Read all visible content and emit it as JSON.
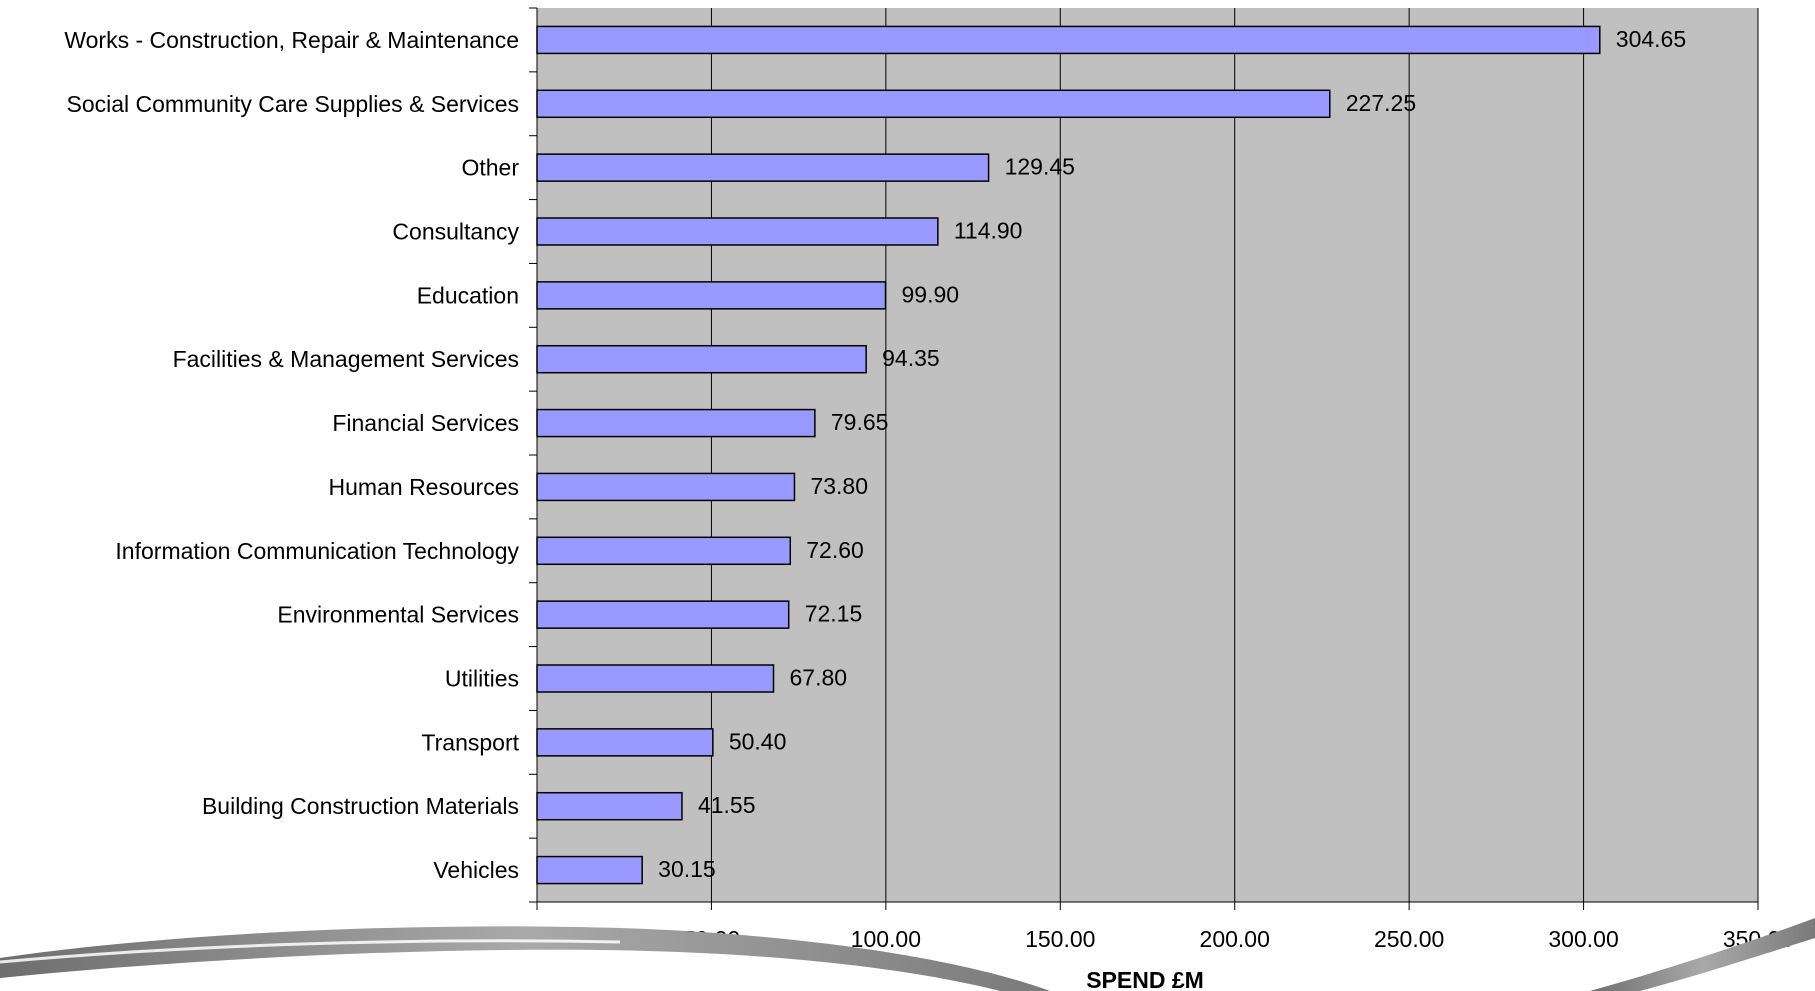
{
  "chart_data": {
    "type": "bar",
    "orientation": "horizontal",
    "categories": [
      "Works - Construction, Repair & Maintenance",
      "Social Community Care Supplies & Services",
      "Other",
      "Consultancy",
      "Education",
      "Facilities & Management Services",
      "Financial Services",
      "Human Resources",
      "Information Communication Technology",
      "Environmental Services",
      "Utilities",
      "Transport",
      "Building Construction Materials",
      "Vehicles"
    ],
    "values": [
      304.65,
      227.25,
      129.45,
      114.9,
      99.9,
      94.35,
      79.65,
      73.8,
      72.6,
      72.15,
      67.8,
      50.4,
      41.55,
      30.15
    ],
    "value_labels": [
      "304.65",
      "227.25",
      "129.45",
      "114.90",
      "99.90",
      "94.35",
      "79.65",
      "73.80",
      "72.60",
      "72.15",
      "67.80",
      "50.40",
      "41.55",
      "30.15"
    ],
    "title": "",
    "xlabel": "SPEND £M",
    "ylabel": "",
    "xlim": [
      0,
      350
    ],
    "x_ticks": [
      0,
      50,
      100,
      150,
      200,
      250,
      300,
      350
    ],
    "x_tick_labels": [
      "-",
      "50.00",
      "100.00",
      "150.00",
      "200.00",
      "250.00",
      "300.00",
      "350.00"
    ],
    "grid": true,
    "legend": "none",
    "colors": {
      "bar_fill": "#9999FF",
      "bar_stroke": "#000000",
      "plot_background": "#C0C0C0",
      "gridline": "#000000"
    }
  }
}
